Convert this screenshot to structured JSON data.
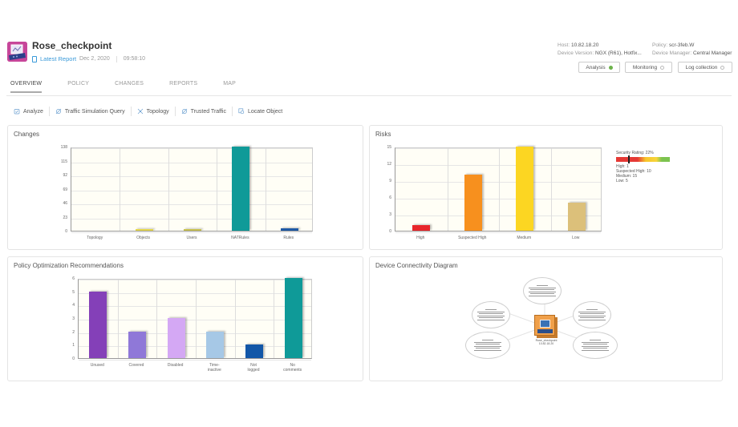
{
  "device": {
    "name": "Rose_checkpoint",
    "report_link": "Latest Report",
    "report_date": "Dec 2, 2020",
    "report_time": "09:58:10",
    "host_label": "Host:",
    "host_value": "10.82.18.20",
    "version_label": "Device Version:",
    "version_value": "NGX (R61), Hotfix...",
    "policy_label": "Policy:",
    "policy_value": "scr-3feb.W",
    "manager_label": "Device Manager:",
    "manager_value": "Central Manager"
  },
  "status_buttons": [
    {
      "label": "Analysis",
      "state": "on"
    },
    {
      "label": "Monitoring",
      "state": "off"
    },
    {
      "label": "Log collection",
      "state": "off"
    }
  ],
  "tabs": [
    {
      "label": "OVERVIEW",
      "active": true
    },
    {
      "label": "POLICY",
      "active": false
    },
    {
      "label": "CHANGES",
      "active": false
    },
    {
      "label": "REPORTS",
      "active": false
    },
    {
      "label": "MAP",
      "active": false
    }
  ],
  "toolbar": [
    {
      "label": "Analyze",
      "icon": "analyze-icon"
    },
    {
      "label": "Traffic Simulation Query",
      "icon": "traffic-simulation-icon"
    },
    {
      "label": "Topology",
      "icon": "topology-icon"
    },
    {
      "label": "Trusted Traffic",
      "icon": "trusted-traffic-icon"
    },
    {
      "label": "Locate Object",
      "icon": "locate-object-icon"
    }
  ],
  "cards": {
    "changes": {
      "title": "Changes"
    },
    "risks": {
      "title": "Risks"
    },
    "policy_opt": {
      "title": "Policy Optimization Recommendations"
    },
    "connectivity": {
      "title": "Device Connectivity Diagram"
    }
  },
  "risks_legend": {
    "title": "Security Rating: 22%",
    "lines": [
      "High: 1",
      "Suspected High: 10",
      "Medium: 15",
      "Low: 5"
    ]
  },
  "diagram": {
    "center_label_1": "Rose_checkpoint",
    "center_label_2": "10.82.18.20"
  },
  "chart_data": [
    {
      "type": "bar",
      "title": "Changes",
      "categories": [
        "Topology",
        "Objects",
        "Users",
        "NATRules",
        "Rules"
      ],
      "values": [
        0,
        3,
        1,
        138,
        4
      ],
      "colors": [
        "#999999",
        "#e6d84a",
        "#c9c24e",
        "#0f9a98",
        "#1f5aa6"
      ],
      "yticks": [
        0,
        23,
        46,
        69,
        92,
        115,
        138
      ],
      "ylim": [
        0,
        138
      ],
      "xlabel": "",
      "ylabel": "",
      "grid": true
    },
    {
      "type": "bar",
      "title": "Risks",
      "categories": [
        "High",
        "Suspected High",
        "Medium",
        "Low"
      ],
      "values": [
        1,
        10,
        15,
        5
      ],
      "colors": [
        "#e8262b",
        "#f7901e",
        "#fcd622",
        "#dcc07a"
      ],
      "yticks": [
        0,
        3,
        6,
        9,
        12,
        15
      ],
      "ylim": [
        0,
        15
      ],
      "xlabel": "",
      "ylabel": "",
      "grid": true
    },
    {
      "type": "bar",
      "title": "Policy Optimization Recommendations",
      "categories": [
        "Unused",
        "Covered",
        "Disabled",
        "Time-inactive",
        "Not logged",
        "No comments"
      ],
      "category_lines": [
        [
          "Unused"
        ],
        [
          "Covered"
        ],
        [
          "Disabled"
        ],
        [
          "Time-",
          "inactive"
        ],
        [
          "Not",
          "logged"
        ],
        [
          "No",
          "comments"
        ]
      ],
      "values": [
        5,
        2,
        3,
        2,
        1,
        6
      ],
      "colors": [
        "#8440b8",
        "#8f78d8",
        "#d4a8f4",
        "#a6c8e6",
        "#1257a8",
        "#0f9a98"
      ],
      "yticks": [
        0,
        1,
        2,
        3,
        4,
        5,
        6
      ],
      "ylim": [
        0,
        6
      ],
      "xlabel": "",
      "ylabel": "",
      "grid": true
    }
  ]
}
